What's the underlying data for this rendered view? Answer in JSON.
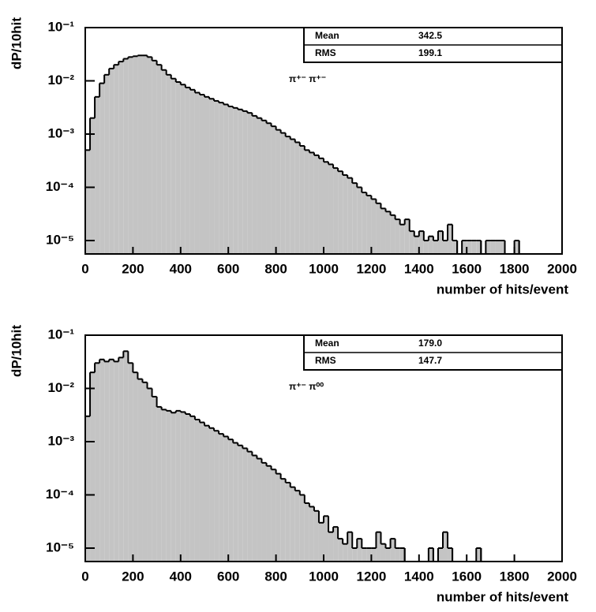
{
  "chart_data": [
    {
      "type": "histogram",
      "annotation": "π⁺⁻ π⁺⁻",
      "x_label": "number of hits/event",
      "y_label": "dP/10hit",
      "stats": [
        {
          "name": "Mean",
          "value": "342.5"
        },
        {
          "name": "RMS",
          "value": "199.1"
        }
      ],
      "log_y": true,
      "color": "#c4c4c4",
      "edge_color": "#000000",
      "xlim": [
        0,
        2000
      ],
      "xticks": [
        0,
        200,
        400,
        600,
        800,
        1000,
        1200,
        1400,
        1600,
        1800,
        2000
      ],
      "ylim": [
        5.6e-06,
        0.1
      ],
      "yticks": [
        {
          "value": 0.1,
          "label": "10⁻¹"
        },
        {
          "value": 0.01,
          "label": "10⁻²"
        },
        {
          "value": 0.001,
          "label": "10⁻³"
        },
        {
          "value": 0.0001,
          "label": "10⁻⁴"
        },
        {
          "value": 1e-05,
          "label": "10⁻⁵"
        }
      ],
      "bins": [
        0,
        20,
        40,
        60,
        80,
        100,
        120,
        140,
        160,
        180,
        200,
        220,
        240,
        260,
        280,
        300,
        320,
        340,
        360,
        380,
        400,
        420,
        440,
        460,
        480,
        500,
        520,
        540,
        560,
        580,
        600,
        620,
        640,
        660,
        680,
        700,
        720,
        740,
        760,
        780,
        800,
        820,
        840,
        860,
        880,
        900,
        920,
        940,
        960,
        980,
        1000,
        1020,
        1040,
        1060,
        1080,
        1100,
        1120,
        1140,
        1160,
        1180,
        1200,
        1220,
        1240,
        1260,
        1280,
        1300,
        1320,
        1340,
        1360,
        1380,
        1400,
        1420,
        1440,
        1460,
        1480,
        1500,
        1520,
        1540,
        1560,
        1580,
        1600,
        1620,
        1640,
        1660,
        1680,
        1700,
        1720,
        1740,
        1760,
        1780,
        1800,
        1820,
        1840,
        1860,
        1880,
        1900,
        1920,
        1940,
        1960,
        1980,
        2000
      ],
      "values": [
        0.0005,
        0.002,
        0.005,
        0.009,
        0.013,
        0.017,
        0.02,
        0.023,
        0.026,
        0.028,
        0.029,
        0.03,
        0.03,
        0.028,
        0.024,
        0.02,
        0.016,
        0.013,
        0.011,
        0.0095,
        0.0085,
        0.0075,
        0.0068,
        0.006,
        0.0055,
        0.005,
        0.0046,
        0.0042,
        0.0039,
        0.0036,
        0.0033,
        0.0031,
        0.0029,
        0.0027,
        0.0025,
        0.0022,
        0.002,
        0.0018,
        0.0016,
        0.0014,
        0.0012,
        0.00105,
        0.0009,
        0.0008,
        0.0007,
        0.0006,
        0.0005,
        0.00045,
        0.0004,
        0.00035,
        0.0003,
        0.00027,
        0.00023,
        0.0002,
        0.00017,
        0.00015,
        0.00012,
        0.0001,
        8e-05,
        7e-05,
        6e-05,
        5e-05,
        4e-05,
        3.5e-05,
        3e-05,
        2.5e-05,
        2e-05,
        2.5e-05,
        1.5e-05,
        1.2e-05,
        1.5e-05,
        1e-05,
        1.2e-05,
        1e-05,
        1.5e-05,
        1e-05,
        2e-05,
        1e-05,
        null,
        1e-05,
        1e-05,
        1e-05,
        1e-05,
        null,
        1e-05,
        1e-05,
        1e-05,
        1e-05,
        null,
        null,
        1e-05,
        null,
        null,
        null,
        null,
        null,
        null,
        null,
        null,
        null
      ]
    },
    {
      "type": "histogram",
      "annotation": "π⁺⁻ π⁰⁰",
      "x_label": "number of hits/event",
      "y_label": "dP/10hit",
      "stats": [
        {
          "name": "Mean",
          "value": "179.0"
        },
        {
          "name": "RMS",
          "value": "147.7"
        }
      ],
      "log_y": true,
      "color": "#c4c4c4",
      "edge_color": "#000000",
      "xlim": [
        0,
        2000
      ],
      "xticks": [
        0,
        200,
        400,
        600,
        800,
        1000,
        1200,
        1400,
        1600,
        1800,
        2000
      ],
      "ylim": [
        5.6e-06,
        0.1
      ],
      "yticks": [
        {
          "value": 0.1,
          "label": "10⁻¹"
        },
        {
          "value": 0.01,
          "label": "10⁻²"
        },
        {
          "value": 0.001,
          "label": "10⁻³"
        },
        {
          "value": 0.0001,
          "label": "10⁻⁴"
        },
        {
          "value": 1e-05,
          "label": "10⁻⁵"
        }
      ],
      "bins": [
        0,
        20,
        40,
        60,
        80,
        100,
        120,
        140,
        160,
        180,
        200,
        220,
        240,
        260,
        280,
        300,
        320,
        340,
        360,
        380,
        400,
        420,
        440,
        460,
        480,
        500,
        520,
        540,
        560,
        580,
        600,
        620,
        640,
        660,
        680,
        700,
        720,
        740,
        760,
        780,
        800,
        820,
        840,
        860,
        880,
        900,
        920,
        940,
        960,
        980,
        1000,
        1020,
        1040,
        1060,
        1080,
        1100,
        1120,
        1140,
        1160,
        1180,
        1200,
        1220,
        1240,
        1260,
        1280,
        1300,
        1320,
        1340,
        1360,
        1380,
        1400,
        1420,
        1440,
        1460,
        1480,
        1500,
        1520,
        1540,
        1560,
        1580,
        1600,
        1620,
        1640,
        1660,
        1680,
        1700,
        1720,
        1740,
        1760,
        1780,
        1800,
        1820,
        1840,
        1860,
        1880,
        1900,
        1920,
        1940,
        1960,
        1980,
        2000
      ],
      "values": [
        0.003,
        0.02,
        0.03,
        0.035,
        0.032,
        0.035,
        0.032,
        0.038,
        0.05,
        0.03,
        0.02,
        0.015,
        0.013,
        0.01,
        0.007,
        0.0045,
        0.004,
        0.0038,
        0.0035,
        0.0038,
        0.0036,
        0.0033,
        0.003,
        0.0026,
        0.0023,
        0.002,
        0.0018,
        0.0016,
        0.0014,
        0.00125,
        0.0011,
        0.00095,
        0.00085,
        0.00075,
        0.00065,
        0.00055,
        0.00048,
        0.0004,
        0.00035,
        0.0003,
        0.00025,
        0.0002,
        0.00017,
        0.00014,
        0.00012,
        0.0001,
        7e-05,
        6e-05,
        5e-05,
        3e-05,
        4e-05,
        2e-05,
        2.5e-05,
        1.5e-05,
        1.2e-05,
        2e-05,
        1e-05,
        1.5e-05,
        1e-05,
        1e-05,
        1e-05,
        2e-05,
        1.2e-05,
        1e-05,
        1.5e-05,
        1e-05,
        1e-05,
        null,
        null,
        null,
        null,
        null,
        1e-05,
        null,
        1e-05,
        2e-05,
        1e-05,
        null,
        null,
        null,
        null,
        null,
        1e-05,
        null,
        null,
        null,
        null,
        null,
        null,
        null,
        null,
        null,
        null,
        null,
        null,
        null,
        null,
        null,
        null,
        null
      ]
    }
  ]
}
